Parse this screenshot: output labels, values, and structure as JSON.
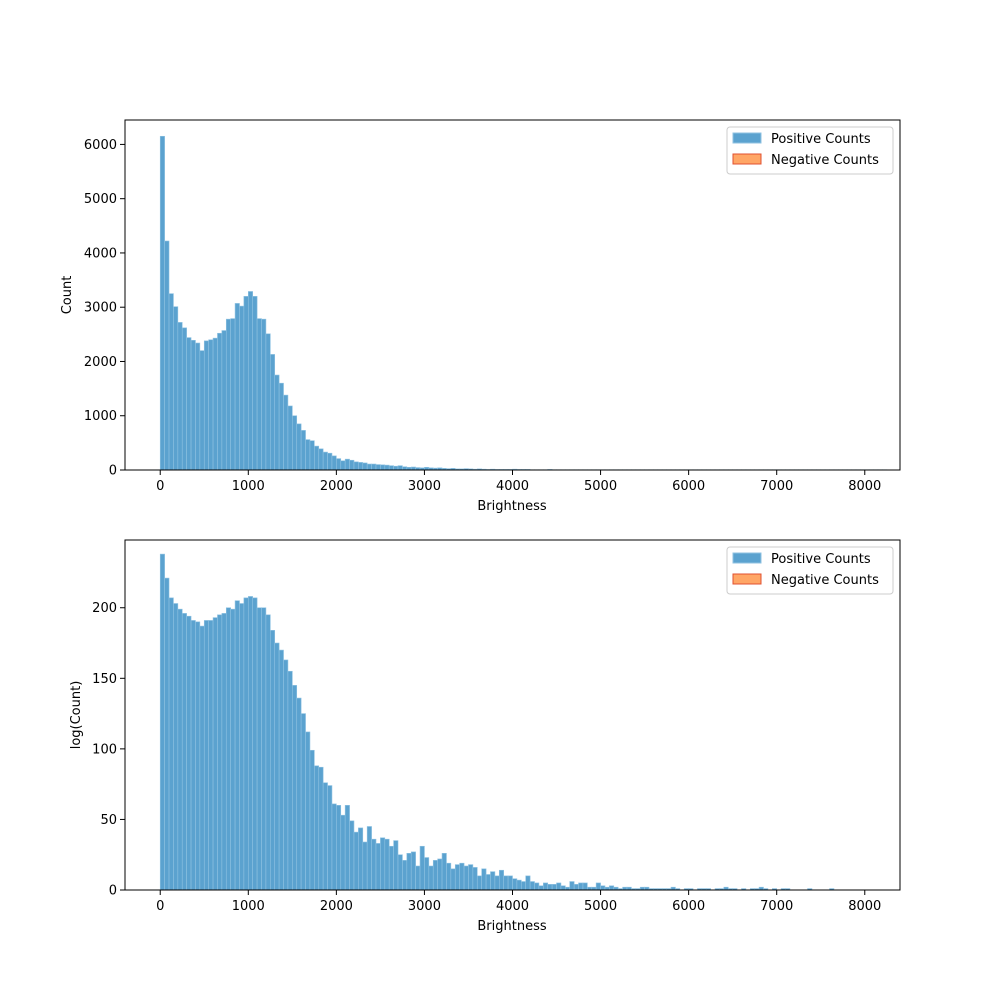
{
  "chart_data": [
    {
      "type": "bar",
      "xlabel": "Brightness",
      "ylabel": "Count",
      "xlim": [
        -400,
        8400
      ],
      "ylim": [
        0,
        6450
      ],
      "xticks": [
        0,
        1000,
        2000,
        3000,
        4000,
        5000,
        6000,
        7000,
        8000
      ],
      "yticks": [
        0,
        1000,
        2000,
        3000,
        4000,
        5000,
        6000
      ],
      "bin_width": 50,
      "bin_start": 0,
      "legend": {
        "position": "top-right",
        "entries": [
          "Positive Counts",
          "Negative Counts"
        ]
      },
      "series": [
        {
          "name": "Positive Counts",
          "color": "#5ba2cf",
          "edge_color": "#8fc2e2",
          "values": [
            6150,
            4220,
            3250,
            3010,
            2720,
            2620,
            2440,
            2390,
            2340,
            2200,
            2380,
            2400,
            2430,
            2520,
            2570,
            2780,
            2790,
            3070,
            3020,
            3200,
            3290,
            3200,
            2790,
            2780,
            2510,
            2130,
            1750,
            1600,
            1380,
            1180,
            1000,
            850,
            730,
            560,
            540,
            440,
            390,
            330,
            310,
            260,
            210,
            170,
            200,
            180,
            150,
            140,
            130,
            110,
            110,
            100,
            95,
            90,
            80,
            70,
            80,
            60,
            50,
            55,
            45,
            40,
            50,
            40,
            35,
            40,
            30,
            25,
            30,
            20,
            20,
            25,
            20,
            15,
            20,
            15,
            10,
            15,
            10,
            10,
            10,
            10,
            15,
            10,
            10,
            10,
            5,
            5,
            5,
            5,
            10,
            5,
            5,
            5,
            5,
            5,
            5,
            5,
            5,
            5,
            5,
            5,
            5,
            5,
            5,
            5,
            5,
            5,
            5,
            5,
            5,
            5,
            5,
            5,
            5,
            5,
            5,
            5,
            5,
            5,
            5,
            5,
            5,
            5,
            5,
            5,
            5,
            5,
            5,
            5,
            5,
            5,
            5,
            5,
            5,
            5,
            5,
            5,
            5,
            5,
            5,
            5,
            5,
            5,
            5,
            5,
            5,
            5,
            5,
            5,
            5,
            5,
            5,
            5,
            5,
            5,
            5,
            5,
            5,
            5,
            5,
            5,
            5,
            5,
            5,
            5,
            5
          ]
        },
        {
          "name": "Negative Counts",
          "color": "#ffa666",
          "edge_color": "#e05030",
          "values": []
        }
      ]
    },
    {
      "type": "bar",
      "xlabel": "Brightness",
      "ylabel": "log(Count)",
      "xlim": [
        -400,
        8400
      ],
      "ylim": [
        0,
        248
      ],
      "xticks": [
        0,
        1000,
        2000,
        3000,
        4000,
        5000,
        6000,
        7000,
        8000
      ],
      "yticks": [
        0,
        50,
        100,
        150,
        200
      ],
      "bin_width": 50,
      "bin_start": 0,
      "legend": {
        "position": "top-right",
        "entries": [
          "Positive Counts",
          "Negative Counts"
        ]
      },
      "series": [
        {
          "name": "Positive Counts",
          "color": "#5ba2cf",
          "edge_color": "#8fc2e2",
          "values": [
            238,
            221,
            207,
            203,
            199,
            196,
            194,
            191,
            190,
            187,
            191,
            191,
            193,
            195,
            196,
            200,
            199,
            205,
            203,
            207,
            208,
            207,
            200,
            200,
            195,
            184,
            175,
            170,
            163,
            155,
            145,
            136,
            125,
            112,
            99,
            88,
            87,
            76,
            74,
            61,
            60,
            53,
            60,
            49,
            41,
            44,
            34,
            45,
            36,
            33,
            37,
            36,
            31,
            35,
            25,
            21,
            26,
            27,
            17,
            31,
            23,
            17,
            21,
            22,
            26,
            19,
            15,
            18,
            19,
            17,
            18,
            16,
            10,
            15,
            11,
            13,
            10,
            14,
            10,
            10,
            8,
            7,
            6,
            10,
            6,
            5,
            3,
            5,
            4,
            4,
            5,
            3,
            2,
            6,
            4,
            5,
            5,
            2,
            2,
            5,
            3,
            2,
            3,
            2,
            1,
            2,
            2,
            1,
            1,
            2,
            2,
            1,
            1,
            1,
            1,
            1,
            2,
            1,
            0,
            1,
            1,
            0,
            1,
            1,
            1,
            0,
            1,
            1,
            2,
            1,
            1,
            0,
            1,
            0,
            1,
            1,
            2,
            1,
            0,
            1,
            0,
            1,
            1,
            0,
            0,
            0,
            0,
            1,
            0,
            0,
            0,
            0,
            1,
            0,
            0,
            0,
            0,
            0,
            0,
            0,
            0,
            0,
            0,
            0,
            0,
            0,
            0,
            0,
            0,
            0,
            0,
            0,
            0,
            0,
            0,
            0,
            0,
            0,
            0,
            0,
            0,
            0,
            0,
            0,
            0
          ]
        },
        {
          "name": "Negative Counts",
          "color": "#ffa666",
          "edge_color": "#e05030",
          "values": []
        }
      ]
    }
  ]
}
